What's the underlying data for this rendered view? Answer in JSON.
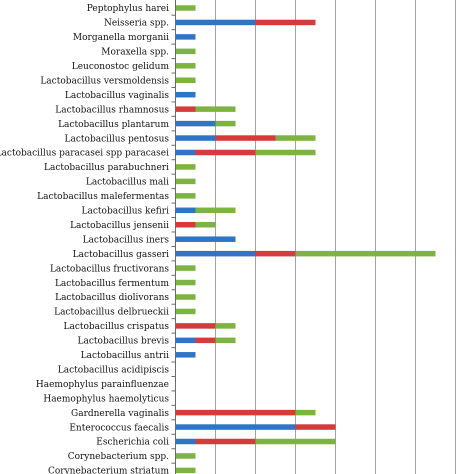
{
  "chart_data": {
    "type": "bar",
    "orientation": "horizontal",
    "stacked": true,
    "title": "",
    "xlabel": "",
    "ylabel": "",
    "xlim": [
      0,
      14
    ],
    "grid": true,
    "legend": "none",
    "categories": [
      "Peptophylus harei",
      "Neisseria spp.",
      "Morganella morganii",
      "Moraxella spp.",
      "Leuconostoc gelidum",
      "Lactobacillus versmoldensis",
      "Lactobacillus vaginalis",
      "Lactobacillus rhamnosus",
      "Lactobacillus plantarum",
      "Lactobacillus pentosus",
      "Lactobacillus paracasei spp paracasei",
      "Lactobacillus parabuchneri",
      "Lactobacillus mali",
      "Lactobacillus malefermentas",
      "Lactobacillus kefiri",
      "Lactobacillus jensenii",
      "Lactobacillus iners",
      "Lactobacillus gasseri",
      "Lactobacillus fructivorans",
      "Lactobacillus fermentum",
      "Lactobacillus diolivorans",
      "Lactobacillus delbrueckii",
      "Lactobacillus crispatus",
      "Lactobacillus brevis",
      "Lactobacillus antrii",
      "Lactobacillus acidipiscis",
      "Haemophylus parainfluenzae",
      "Haemophylus haemolyticus",
      "Gardnerella vaginalis",
      "Enterococcus faecalis",
      "Escherichia coli",
      "Corynebacterium spp.",
      "Corynebacterium striatum"
    ],
    "series": [
      {
        "color": "#2e75c6",
        "values": [
          0,
          4,
          1,
          0,
          0,
          0,
          1,
          0,
          2,
          2,
          1,
          0,
          0,
          0,
          1,
          0,
          3,
          4,
          0,
          0,
          0,
          0,
          0,
          1,
          1,
          0,
          0,
          0,
          0,
          6,
          1,
          0,
          0
        ]
      },
      {
        "color": "#d63b3b",
        "values": [
          0,
          3,
          0,
          0,
          0,
          0,
          0,
          1,
          0,
          3,
          3,
          0,
          0,
          0,
          0,
          1,
          0,
          2,
          0,
          0,
          0,
          0,
          2,
          1,
          0,
          0,
          0,
          0,
          6,
          2,
          3,
          0,
          0
        ]
      },
      {
        "color": "#7db340",
        "values": [
          1,
          0,
          0,
          1,
          1,
          1,
          0,
          2,
          1,
          2,
          3,
          1,
          1,
          1,
          2,
          1,
          0,
          7,
          1,
          1,
          1,
          1,
          1,
          1,
          0,
          0,
          0,
          0,
          1,
          0,
          4,
          1,
          1
        ]
      }
    ]
  }
}
